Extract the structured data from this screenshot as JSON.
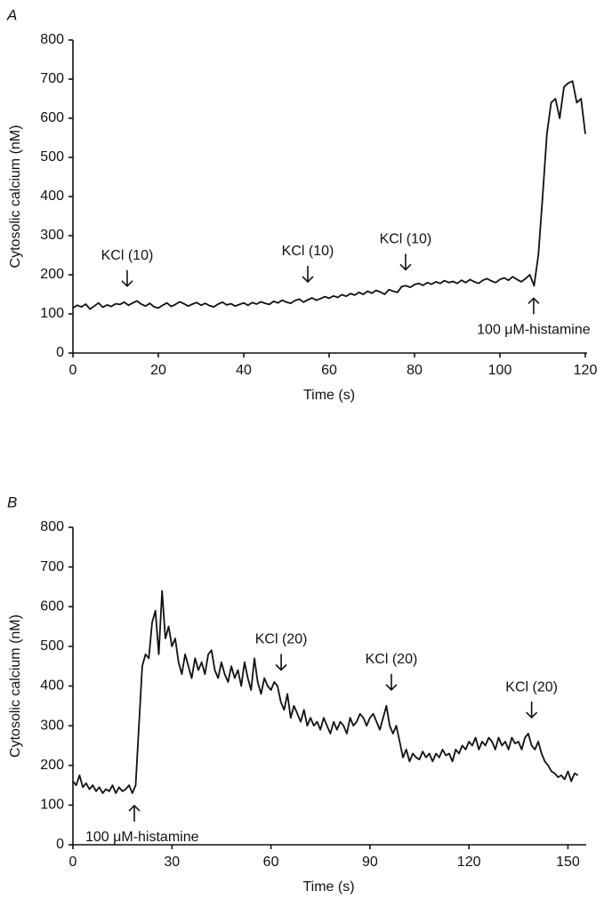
{
  "chart_data": [
    {
      "type": "line",
      "panel": "A",
      "xlabel": "Time (s)",
      "ylabel": "Cytosolic calcium (nM)",
      "color": "#111111",
      "xlim": [
        0,
        120
      ],
      "ylim": [
        0,
        800
      ],
      "xticks": [
        0,
        20,
        40,
        60,
        80,
        100,
        120
      ],
      "yticks": [
        0,
        100,
        200,
        300,
        400,
        500,
        600,
        700,
        800
      ],
      "x": [
        0,
        1,
        2,
        3,
        4,
        5,
        6,
        7,
        8,
        9,
        10,
        11,
        12,
        13,
        14,
        15,
        16,
        17,
        18,
        19,
        20,
        21,
        22,
        23,
        24,
        25,
        26,
        27,
        28,
        29,
        30,
        31,
        32,
        33,
        34,
        35,
        36,
        37,
        38,
        39,
        40,
        41,
        42,
        43,
        44,
        45,
        46,
        47,
        48,
        49,
        50,
        51,
        52,
        53,
        54,
        55,
        56,
        57,
        58,
        59,
        60,
        61,
        62,
        63,
        64,
        65,
        66,
        67,
        68,
        69,
        70,
        71,
        72,
        73,
        74,
        75,
        76,
        77,
        78,
        79,
        80,
        81,
        82,
        83,
        84,
        85,
        86,
        87,
        88,
        89,
        90,
        91,
        92,
        93,
        94,
        95,
        96,
        97,
        98,
        99,
        100,
        101,
        102,
        103,
        104,
        105,
        106,
        107,
        108,
        109,
        110,
        111,
        112,
        113,
        114,
        115,
        116,
        117,
        118,
        119,
        120
      ],
      "values": [
        115,
        122,
        118,
        125,
        112,
        120,
        128,
        117,
        123,
        119,
        126,
        124,
        130,
        122,
        128,
        133,
        125,
        120,
        127,
        118,
        115,
        122,
        128,
        119,
        124,
        131,
        126,
        120,
        125,
        129,
        122,
        127,
        121,
        118,
        125,
        130,
        123,
        126,
        120,
        124,
        128,
        122,
        129,
        125,
        131,
        127,
        124,
        132,
        128,
        135,
        130,
        127,
        134,
        138,
        130,
        136,
        141,
        135,
        139,
        144,
        140,
        146,
        142,
        149,
        145,
        152,
        148,
        155,
        150,
        158,
        153,
        160,
        156,
        150,
        162,
        158,
        155,
        170,
        172,
        168,
        175,
        178,
        173,
        180,
        176,
        182,
        178,
        185,
        180,
        183,
        178,
        186,
        180,
        188,
        182,
        178,
        186,
        190,
        184,
        180,
        188,
        192,
        186,
        195,
        188,
        182,
        190,
        200,
        172,
        250,
        400,
        560,
        640,
        650,
        600,
        680,
        690,
        695,
        640,
        650,
        560
      ],
      "annotations": [
        {
          "text": "KCl (10)",
          "x": 12.7,
          "side": "above"
        },
        {
          "text": "KCl (10)",
          "x": 55,
          "side": "above"
        },
        {
          "text": "KCl (10)",
          "x": 77.9,
          "side": "above"
        },
        {
          "text": "100 μM-histamine",
          "x": 107.9,
          "side": "below"
        }
      ]
    },
    {
      "type": "line",
      "panel": "B",
      "xlabel": "Time (s)",
      "ylabel": "Cytosolic calcium (nM)",
      "color": "#111111",
      "xlim": [
        0,
        155
      ],
      "ylim": [
        0,
        800
      ],
      "xticks": [
        0,
        30,
        60,
        90,
        120,
        150
      ],
      "yticks": [
        0,
        100,
        200,
        300,
        400,
        500,
        600,
        700,
        800
      ],
      "x": [
        0,
        1,
        2,
        3,
        4,
        5,
        6,
        7,
        8,
        9,
        10,
        11,
        12,
        13,
        14,
        15,
        16,
        17,
        18,
        19,
        20,
        21,
        22,
        23,
        24,
        25,
        26,
        27,
        28,
        29,
        30,
        31,
        32,
        33,
        34,
        35,
        36,
        37,
        38,
        39,
        40,
        41,
        42,
        43,
        44,
        45,
        46,
        47,
        48,
        49,
        50,
        51,
        52,
        53,
        54,
        55,
        56,
        57,
        58,
        59,
        60,
        61,
        62,
        63,
        64,
        65,
        66,
        67,
        68,
        69,
        70,
        71,
        72,
        73,
        74,
        75,
        76,
        77,
        78,
        79,
        80,
        81,
        82,
        83,
        84,
        85,
        86,
        87,
        88,
        89,
        90,
        91,
        92,
        93,
        94,
        95,
        96,
        97,
        98,
        99,
        100,
        101,
        102,
        103,
        104,
        105,
        106,
        107,
        108,
        109,
        110,
        111,
        112,
        113,
        114,
        115,
        116,
        117,
        118,
        119,
        120,
        121,
        122,
        123,
        124,
        125,
        126,
        127,
        128,
        129,
        130,
        131,
        132,
        133,
        134,
        135,
        136,
        137,
        138,
        139,
        140,
        141,
        142,
        143,
        144,
        145,
        146,
        147,
        148,
        149,
        150,
        151,
        152,
        153
      ],
      "values": [
        160,
        150,
        175,
        145,
        155,
        140,
        150,
        135,
        145,
        130,
        140,
        135,
        150,
        130,
        145,
        135,
        140,
        150,
        130,
        150,
        300,
        450,
        480,
        470,
        560,
        590,
        480,
        640,
        520,
        550,
        500,
        520,
        460,
        430,
        480,
        450,
        420,
        470,
        440,
        460,
        430,
        480,
        490,
        440,
        420,
        460,
        430,
        410,
        450,
        420,
        440,
        400,
        460,
        420,
        390,
        470,
        410,
        380,
        420,
        400,
        390,
        410,
        400,
        360,
        340,
        380,
        320,
        350,
        330,
        310,
        340,
        300,
        320,
        300,
        310,
        290,
        320,
        300,
        280,
        310,
        290,
        310,
        300,
        280,
        320,
        300,
        310,
        330,
        320,
        300,
        320,
        330,
        310,
        290,
        320,
        350,
        300,
        280,
        300,
        260,
        220,
        240,
        210,
        230,
        220,
        215,
        235,
        220,
        230,
        210,
        230,
        220,
        240,
        225,
        230,
        210,
        240,
        230,
        250,
        240,
        260,
        250,
        270,
        240,
        260,
        250,
        270,
        260,
        240,
        270,
        250,
        260,
        240,
        270,
        255,
        260,
        240,
        270,
        280,
        250,
        240,
        260,
        230,
        210,
        200,
        185,
        180,
        170,
        175,
        165,
        185,
        160,
        180,
        175
      ],
      "annotations": [
        {
          "text": "100 μM-histamine",
          "x": 18.6,
          "side": "below"
        },
        {
          "text": "KCl (20)",
          "x": 63.1,
          "side": "above"
        },
        {
          "text": "KCl (20)",
          "x": 96.5,
          "side": "above"
        },
        {
          "text": "KCl (20)",
          "x": 139,
          "side": "above"
        }
      ]
    }
  ]
}
